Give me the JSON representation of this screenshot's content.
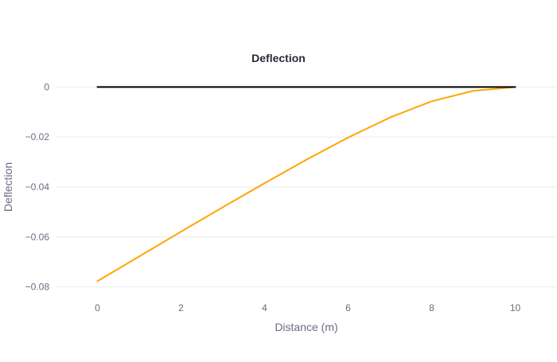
{
  "chart_data": {
    "type": "line",
    "title": "Deflection",
    "xlabel": "Distance (m)",
    "ylabel": "Deflection",
    "xlim": [
      -1,
      11
    ],
    "ylim": [
      -0.083,
      0.003
    ],
    "xticks": [
      {
        "value": 0,
        "label": "0"
      },
      {
        "value": 2,
        "label": "2"
      },
      {
        "value": 4,
        "label": "4"
      },
      {
        "value": 6,
        "label": "6"
      },
      {
        "value": 8,
        "label": "8"
      },
      {
        "value": 10,
        "label": "10"
      }
    ],
    "yticks": [
      {
        "value": 0,
        "label": "0"
      },
      {
        "value": -0.02,
        "label": "−0.02"
      },
      {
        "value": -0.04,
        "label": "−0.04"
      },
      {
        "value": -0.06,
        "label": "−0.06"
      },
      {
        "value": -0.08,
        "label": "−0.08"
      }
    ],
    "grid": true,
    "series": [
      {
        "key": "deflected",
        "color": "#ffa500",
        "x": [
          0,
          1,
          2,
          3,
          4,
          5,
          6,
          7,
          8,
          9,
          10
        ],
        "y": [
          -0.0777,
          -0.0678,
          -0.0579,
          -0.0481,
          -0.0385,
          -0.0291,
          -0.0202,
          -0.0122,
          -0.0057,
          -0.0015,
          0
        ]
      },
      {
        "key": "original",
        "color": "#000000",
        "x": [
          0,
          10
        ],
        "y": [
          0,
          0
        ]
      }
    ]
  }
}
